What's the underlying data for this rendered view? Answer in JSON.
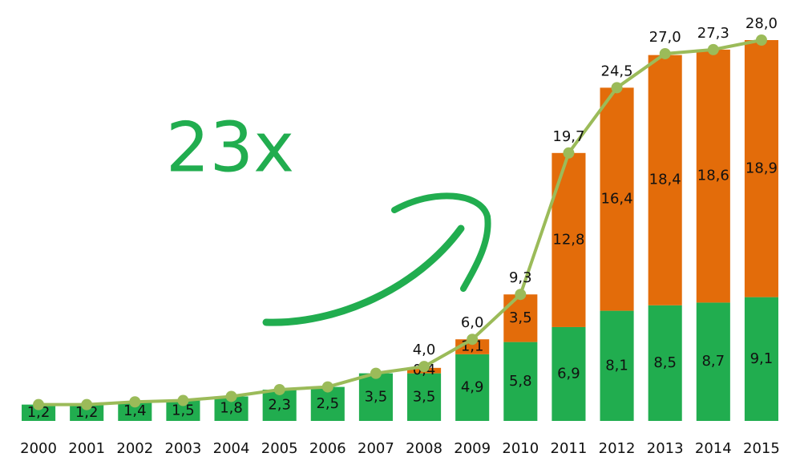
{
  "chart_data": {
    "type": "bar",
    "stacked": true,
    "annotation": "23x",
    "categories": [
      "2000",
      "2001",
      "2002",
      "2003",
      "2004",
      "2005",
      "2006",
      "2007",
      "2008",
      "2009",
      "2010",
      "2011",
      "2012",
      "2013",
      "2014",
      "2015"
    ],
    "series": [
      {
        "color": "#21ad4f",
        "values": [
          1.2,
          1.2,
          1.4,
          1.5,
          1.8,
          2.3,
          2.5,
          3.5,
          3.5,
          4.9,
          5.8,
          6.9,
          8.1,
          8.5,
          8.7,
          9.1
        ],
        "value_labels": [
          "1,2",
          "1,2",
          "1,4",
          "1,5",
          "1,8",
          "2,3",
          "2,5",
          "3,5",
          "3,5",
          "4,9",
          "5,8",
          "6,9",
          "8,1",
          "8,5",
          "8,7",
          "9,1"
        ]
      },
      {
        "color": "#e36c0a",
        "values": [
          null,
          null,
          null,
          null,
          null,
          null,
          null,
          null,
          0.4,
          1.1,
          3.5,
          12.8,
          16.4,
          18.4,
          18.6,
          18.9
        ],
        "value_labels": [
          null,
          null,
          null,
          null,
          null,
          null,
          null,
          null,
          "0,4",
          "1,1",
          "3,5",
          "12,8",
          "16,4",
          "18,4",
          "18,6",
          "18,9"
        ]
      },
      {
        "type": "line",
        "color": "#9bbb59",
        "values": [
          1.2,
          1.2,
          1.4,
          1.5,
          1.8,
          2.3,
          2.5,
          3.5,
          4.0,
          6.0,
          9.3,
          19.7,
          24.5,
          27.0,
          27.3,
          28.0
        ],
        "value_labels": [
          null,
          null,
          null,
          null,
          null,
          null,
          null,
          null,
          "4,0",
          "6,0",
          "9,3",
          "19,7",
          "24,5",
          "27,0",
          "27,3",
          "28,0"
        ]
      }
    ]
  }
}
